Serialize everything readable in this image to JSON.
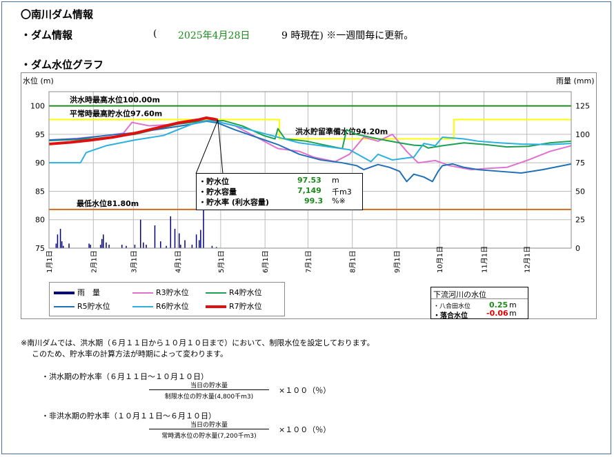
{
  "header": {
    "title": "〇南川ダム情報",
    "dam_info_label": "・ダム情報",
    "paren_open": "(",
    "date": "2025年4月28日",
    "time_note": "9 時現在) ※一週間毎に更新。",
    "graph_label": "・ダム水位グラフ"
  },
  "info_box": {
    "rows": [
      {
        "label": "・貯水位",
        "value": "97.53",
        "unit": "m"
      },
      {
        "label": "・貯水容量",
        "value": "7,149",
        "unit": "千m3"
      },
      {
        "label": "・貯水率 (利水容量)",
        "value": "99.3",
        "unit": "%※"
      }
    ]
  },
  "downstream_box": {
    "title": "下流河川の水位",
    "rows": [
      {
        "label": "・八合田水位",
        "value": "0.25",
        "unit": "m",
        "color": "#1a8a1a"
      },
      {
        "label": "・落合水位",
        "value": "-0.06",
        "unit": "m",
        "color": "#e00000"
      }
    ]
  },
  "chart_data": {
    "type": "line",
    "ylabel_left": "水位 (m)",
    "ylabel_right": "雨量 (mm)",
    "ylim_left": [
      75,
      102.5
    ],
    "ylim_right": [
      0,
      137.5
    ],
    "yticks_left": [
      "100",
      "95",
      "90",
      "85",
      "80",
      "75"
    ],
    "yticks_right": [
      "125",
      "100",
      "75",
      "50",
      "25",
      "0"
    ],
    "x_ticks": [
      "1月1日",
      "2月1日",
      "3月1日",
      "4月1日",
      "5月1日",
      "6月1日",
      "7月1日",
      "8月1日",
      "9月1日",
      "10月1日",
      "11月1日",
      "12月1日"
    ],
    "grid": true,
    "reference_lines": [
      {
        "label": "洪水時最高水位100.00m",
        "value": 100.0,
        "color": "#1a8a1a"
      },
      {
        "label": "平常時最高貯水位97.60m",
        "value": 97.6,
        "color": "#ffff00"
      },
      {
        "label": "洪水貯留準備水位94.20m",
        "value": 94.2,
        "color": "#ffff00"
      },
      {
        "label": "最低水位81.80m",
        "value": 81.8,
        "color": "#d2691e"
      }
    ],
    "limit_line": {
      "x": [
        0,
        161,
        161,
        283,
        283,
        365
      ],
      "y": [
        97.6,
        97.6,
        94.2,
        94.2,
        97.6,
        97.6
      ],
      "color": "#ffff00"
    },
    "series": [
      {
        "name": "R3貯水位",
        "color": "#e070d0",
        "width": 2,
        "x": [
          0,
          20,
          40,
          52,
          58,
          70,
          90,
          105,
          115,
          130,
          145,
          160,
          175,
          185,
          200,
          210,
          220,
          230,
          240,
          250,
          258,
          270,
          280,
          295,
          305,
          320,
          335,
          350,
          365
        ],
        "y": [
          94,
          94.3,
          94.8,
          95.2,
          97.1,
          96.5,
          96.8,
          97.3,
          97.4,
          96.5,
          94.5,
          92.5,
          92,
          91,
          90.2,
          91.5,
          94.5,
          93.8,
          95,
          92,
          90,
          90.4,
          89.5,
          88.8,
          89,
          89.2,
          90.5,
          92,
          93
        ]
      },
      {
        "name": "R4貯水位",
        "color": "#1aa050",
        "width": 2,
        "x": [
          0,
          30,
          60,
          90,
          110,
          122,
          135,
          150,
          158,
          160,
          165,
          180,
          195,
          205,
          208,
          215,
          230,
          245,
          255,
          262,
          265,
          275,
          290,
          305,
          320,
          335,
          350,
          365
        ],
        "y": [
          93.9,
          94.2,
          95,
          96.8,
          97.4,
          97.4,
          96.5,
          94.8,
          94.2,
          96,
          94.2,
          93.8,
          93,
          92.5,
          95.8,
          95,
          94.2,
          93.5,
          93.1,
          93,
          92.6,
          93,
          93.5,
          93.2,
          92.8,
          92.9,
          93.5,
          93.8
        ]
      },
      {
        "name": "R5貯水位",
        "color": "#1f6fb8",
        "width": 2,
        "x": [
          0,
          20,
          40,
          60,
          80,
          100,
          110,
          118,
          130,
          145,
          160,
          175,
          190,
          205,
          215,
          220,
          230,
          238,
          245,
          250,
          255,
          262,
          268,
          272,
          275,
          282,
          290,
          300,
          315,
          330,
          345,
          365
        ],
        "y": [
          94,
          94.2,
          94.8,
          95.3,
          96,
          96.8,
          97.3,
          97,
          95.8,
          94.5,
          93.2,
          91.5,
          90.5,
          90,
          89.5,
          88.8,
          89.7,
          89.2,
          88.5,
          86.7,
          88,
          87.5,
          86.7,
          88.5,
          89.5,
          89.8,
          89.2,
          88.8,
          88.5,
          88.2,
          88.8,
          89.8
        ]
      },
      {
        "name": "R6貯水位",
        "color": "#2ab0e0",
        "width": 2,
        "x": [
          0,
          20,
          22,
          26,
          40,
          60,
          80,
          100,
          110,
          118,
          130,
          145,
          160,
          175,
          190,
          210,
          225,
          230,
          240,
          255,
          262,
          270,
          275,
          290,
          300,
          315,
          330,
          350,
          365
        ],
        "y": [
          90,
          90,
          90,
          91.8,
          93,
          94,
          94.8,
          96.8,
          97.4,
          97.2,
          96.5,
          95.5,
          94.5,
          93.5,
          93,
          92.3,
          90.2,
          91.5,
          90.5,
          91,
          93.4,
          93,
          94.5,
          94.2,
          93.8,
          93.5,
          93.3,
          93.2,
          93.4
        ]
      },
      {
        "name": "R7貯水位",
        "color": "#e01010",
        "width": 4,
        "x": [
          0,
          15,
          30,
          45,
          60,
          75,
          90,
          100,
          105,
          110,
          115,
          118
        ],
        "y": [
          93.3,
          93.6,
          94,
          94.5,
          95.2,
          96.1,
          97.0,
          97.4,
          97.6,
          97.9,
          97.7,
          97.53
        ]
      }
    ],
    "rain": {
      "name": "雨量",
      "color": "#000080",
      "days": [
        5,
        6,
        8,
        9,
        10,
        14,
        28,
        29,
        36,
        37,
        38,
        40,
        42,
        51,
        54,
        60,
        64,
        66,
        68,
        74,
        78,
        82,
        85,
        88,
        91,
        92,
        95,
        100,
        103,
        105,
        106,
        108,
        114,
        117
      ],
      "mm": [
        4,
        12,
        17,
        6,
        2,
        4,
        4,
        3,
        3,
        8,
        12,
        5,
        3,
        3,
        2,
        3,
        25,
        5,
        3,
        20,
        6,
        2,
        28,
        17,
        13,
        3,
        7,
        3,
        12,
        7,
        16,
        45,
        2,
        1
      ]
    }
  },
  "legend": [
    {
      "key": "rain",
      "label": "雨　量",
      "color": "#000080",
      "width": 4
    },
    {
      "key": "r3",
      "label": "R3貯水位",
      "color": "#e070d0",
      "width": 2
    },
    {
      "key": "r4",
      "label": "R4貯水位",
      "color": "#1aa050",
      "width": 2
    },
    {
      "key": "r5",
      "label": "R5貯水位",
      "color": "#1f6fb8",
      "width": 2
    },
    {
      "key": "r6",
      "label": "R6貯水位",
      "color": "#2ab0e0",
      "width": 2
    },
    {
      "key": "r7",
      "label": "R7貯水位",
      "color": "#e01010",
      "width": 4
    }
  ],
  "notes": {
    "line1": "※南川ダムでは、洪水期（６月１１日から１０月１０日まで）において、制限水位を設定しております。",
    "line2": "このため、貯水率の計算方法が時期によって変わります。",
    "flood_title": "・洪水期の貯水率（６月１１日～１０月１０日）",
    "flood_num": "当日の貯水量",
    "flood_den": "制限水位の貯水量(4,800千m3)",
    "flood_mult": "×１００（％）",
    "nonflood_title": "・非洪水期の貯水率（１０月１１日～６月１０日）",
    "nonflood_num": "当日の貯水量",
    "nonflood_den": "常時満水位の貯水量(7,200千m3)",
    "nonflood_mult": "×１００（％）"
  }
}
